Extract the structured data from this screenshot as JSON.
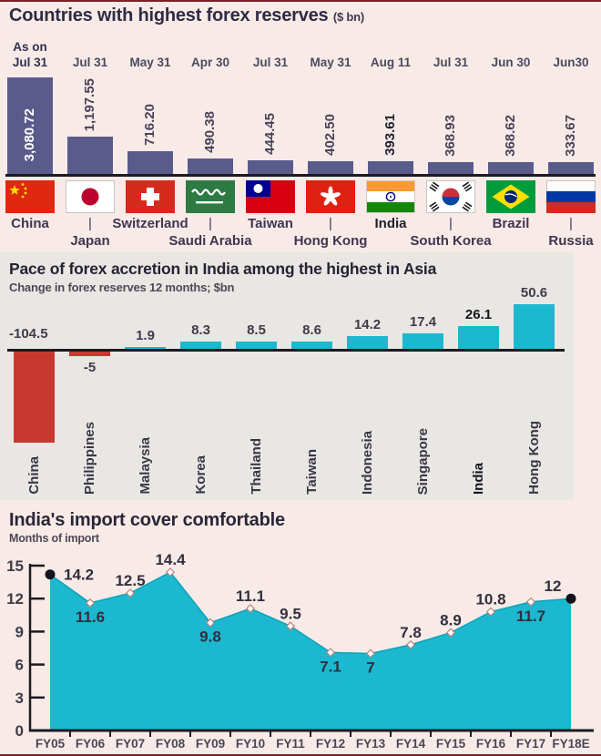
{
  "page": {
    "edge_rule_color": "#7b2125",
    "background_color": "#f8ebe7",
    "panel2_background_color": "#e9e7e3"
  },
  "chart_data": [
    {
      "id": "forex-reserves",
      "type": "bar",
      "title": "Countries with highest forex reserves",
      "unit_label": "($ bn)",
      "as_on_label": "As on",
      "bar_color": "#5a5b8c",
      "inside_label_color": "#ffffff",
      "categories": [
        "China",
        "Japan",
        "Switzerland",
        "Saudi Arabia",
        "Taiwan",
        "Hong Kong",
        "India",
        "South Korea",
        "Brazil",
        "Russia"
      ],
      "dates": [
        "Jul 31",
        "Jul 31",
        "May 31",
        "Apr 30",
        "Jul 31",
        "May 31",
        "Aug 11",
        "Jul 31",
        "Jun 30",
        "Jun30"
      ],
      "values": [
        3080.72,
        1197.55,
        716.2,
        490.38,
        444.45,
        402.5,
        393.61,
        368.93,
        368.62,
        333.67
      ],
      "value_labels": [
        "3,080.72",
        "1,197.55",
        "716.20",
        "490.38",
        "444.45",
        "402.50",
        "393.61",
        "368.93",
        "368.62",
        "333.67"
      ],
      "flags": [
        "china-flag",
        "japan-flag",
        "switzerland-flag",
        "saudi-arabia-flag",
        "taiwan-flag",
        "hong-kong-flag",
        "india-flag",
        "south-korea-flag",
        "brazil-flag",
        "russia-flag"
      ],
      "name_row": [
        "top",
        "bottom",
        "top",
        "bottom",
        "top",
        "bottom",
        "top",
        "bottom",
        "top",
        "bottom"
      ],
      "bold_index": 6,
      "legend": "none",
      "grid": false
    },
    {
      "id": "forex-accretion",
      "type": "bar",
      "title": "Pace of forex accretion in India among the highest in Asia",
      "subtitle": "Change in forex reserves 12 months; $bn",
      "positive_color": "#1cb8cf",
      "negative_color": "#c9382e",
      "categories": [
        "China",
        "Philippines",
        "Malaysia",
        "Korea",
        "Thailand",
        "Taiwan",
        "Indonesia",
        "Singapore",
        "India",
        "Hong Kong"
      ],
      "values": [
        -104.5,
        -5,
        1.9,
        8.3,
        8.5,
        8.6,
        14.2,
        17.4,
        26.1,
        50.6
      ],
      "value_labels": [
        "-104.5",
        "-5",
        "1.9",
        "8.3",
        "8.5",
        "8.6",
        "14.2",
        "17.4",
        "26.1",
        "50.6"
      ],
      "bold_index": 8,
      "legend": "none",
      "grid": false
    },
    {
      "id": "import-cover",
      "type": "area",
      "title": "India's import cover comfortable",
      "ylabel": "Months of import",
      "fill_color": "#1cb8cf",
      "edge_color": "#0aa2ba",
      "categories": [
        "FY05",
        "FY06",
        "FY07",
        "FY08",
        "FY09",
        "FY10",
        "FY11",
        "FY12",
        "FY13",
        "FY14",
        "FY15",
        "FY16",
        "FY17",
        "FY18E"
      ],
      "values": [
        14.2,
        11.6,
        12.5,
        14.4,
        9.8,
        11.1,
        9.5,
        7.1,
        7,
        7.8,
        8.9,
        10.8,
        11.7,
        12
      ],
      "value_labels": [
        "14.2",
        "11.6",
        "12.5",
        "14.4",
        "9.8",
        "11.1",
        "9.5",
        "7.1",
        "7",
        "7.8",
        "8.9",
        "10.8",
        "11.7",
        "12"
      ],
      "label_pos": [
        "right",
        "below",
        "above",
        "above",
        "below",
        "above",
        "above",
        "below",
        "below",
        "above",
        "above",
        "above",
        "below",
        "above-left"
      ],
      "yticks": [
        15,
        12,
        9,
        6,
        3,
        0
      ],
      "ylim": [
        0,
        15
      ],
      "endpoint_marker": "filled-circle",
      "point_marker": "open-diamond",
      "legend": "none",
      "grid": false
    }
  ]
}
